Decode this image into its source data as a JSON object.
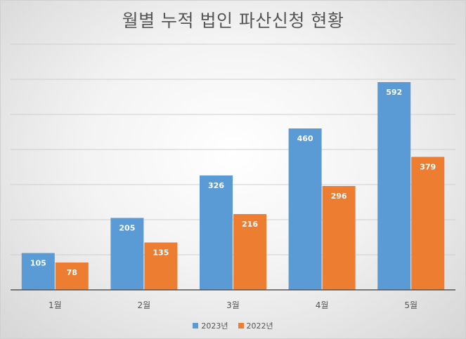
{
  "chart_data": {
    "type": "bar",
    "title": "월별 누적 법인 파산신청 현황",
    "categories": [
      "1월",
      "2월",
      "3월",
      "4월",
      "5월"
    ],
    "series": [
      {
        "name": "2023년",
        "color": "#5b9bd5",
        "values": [
          105,
          205,
          326,
          460,
          592
        ]
      },
      {
        "name": "2022년",
        "color": "#ed7d31",
        "values": [
          78,
          135,
          216,
          296,
          379
        ]
      }
    ],
    "ylim": [
      0,
      700
    ],
    "grid": true,
    "y_tick_labels": false,
    "legend": "bottom"
  }
}
